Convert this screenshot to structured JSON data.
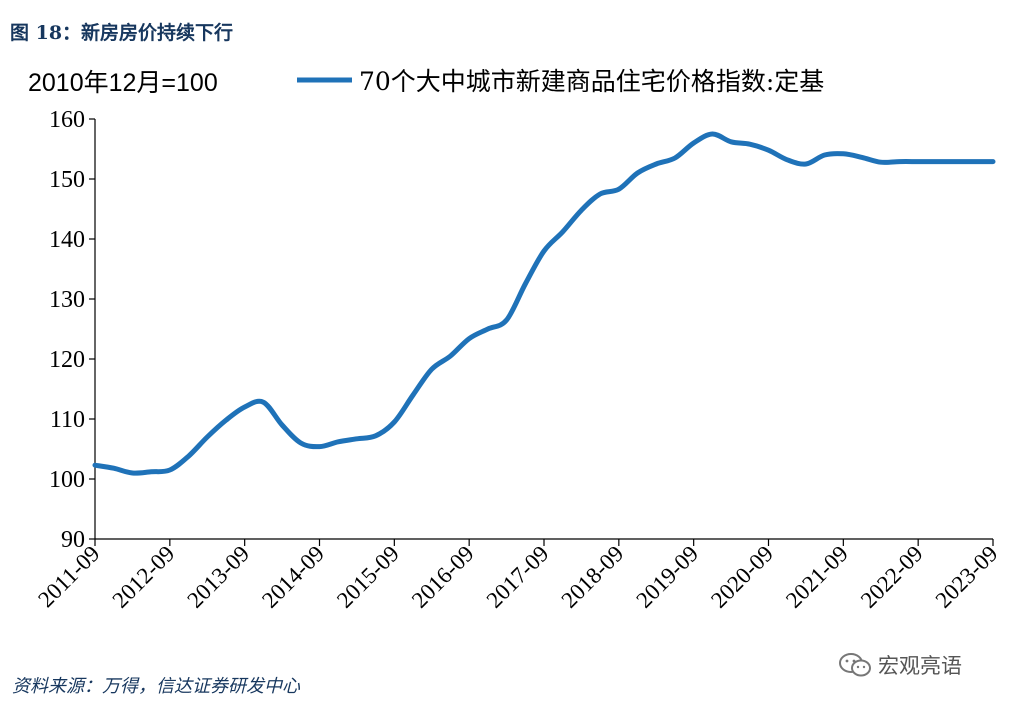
{
  "figure": {
    "title": "图 18：新房房价持续下行",
    "source": "资料来源：万得，信达证券研发中心",
    "watermark": "宏观亮语"
  },
  "chart_data": {
    "type": "line",
    "unit_label": "2010年12月=100",
    "ylim": [
      90,
      160
    ],
    "yticks": [
      "90",
      "100",
      "110",
      "120",
      "130",
      "140",
      "150",
      "160"
    ],
    "xticks": [
      "2011-09",
      "2012-09",
      "2013-09",
      "2014-09",
      "2015-09",
      "2016-09",
      "2017-09",
      "2018-09",
      "2019-09",
      "2020-09",
      "2021-09",
      "2022-09",
      "2023-09"
    ],
    "grid": false,
    "legend_position": "top",
    "color": "#1f72b8",
    "series": [
      {
        "name": "70个大中城市新建商品住宅价格指数:定基",
        "x": [
          "2011-09",
          "2011-12",
          "2012-03",
          "2012-06",
          "2012-09",
          "2012-12",
          "2013-03",
          "2013-06",
          "2013-09",
          "2013-12",
          "2014-03",
          "2014-06",
          "2014-09",
          "2014-12",
          "2015-03",
          "2015-06",
          "2015-09",
          "2015-12",
          "2016-03",
          "2016-06",
          "2016-09",
          "2016-12",
          "2017-03",
          "2017-06",
          "2017-09",
          "2017-12",
          "2018-03",
          "2018-06",
          "2018-09",
          "2018-12",
          "2019-03",
          "2019-06",
          "2019-09",
          "2019-12",
          "2020-03",
          "2020-06",
          "2020-09",
          "2020-12",
          "2021-03",
          "2021-06",
          "2021-09",
          "2021-12",
          "2022-03",
          "2022-06",
          "2022-09",
          "2022-12",
          "2023-03",
          "2023-06",
          "2023-09"
        ],
        "values": [
          102.3,
          101.8,
          101.0,
          101.2,
          101.5,
          103.8,
          107.0,
          109.8,
          112.0,
          112.8,
          109.0,
          106.0,
          105.4,
          106.2,
          106.7,
          107.2,
          109.5,
          114.0,
          118.3,
          120.5,
          123.4,
          125.0,
          126.5,
          132.5,
          138.0,
          141.2,
          144.8,
          147.5,
          148.3,
          151.0,
          152.5,
          153.5,
          156.0,
          157.5,
          156.2,
          155.8,
          154.8,
          153.2,
          152.5,
          154.0,
          154.2,
          153.6,
          152.8,
          152.9,
          152.9,
          152.9,
          152.9,
          152.9,
          152.9
        ]
      }
    ]
  }
}
